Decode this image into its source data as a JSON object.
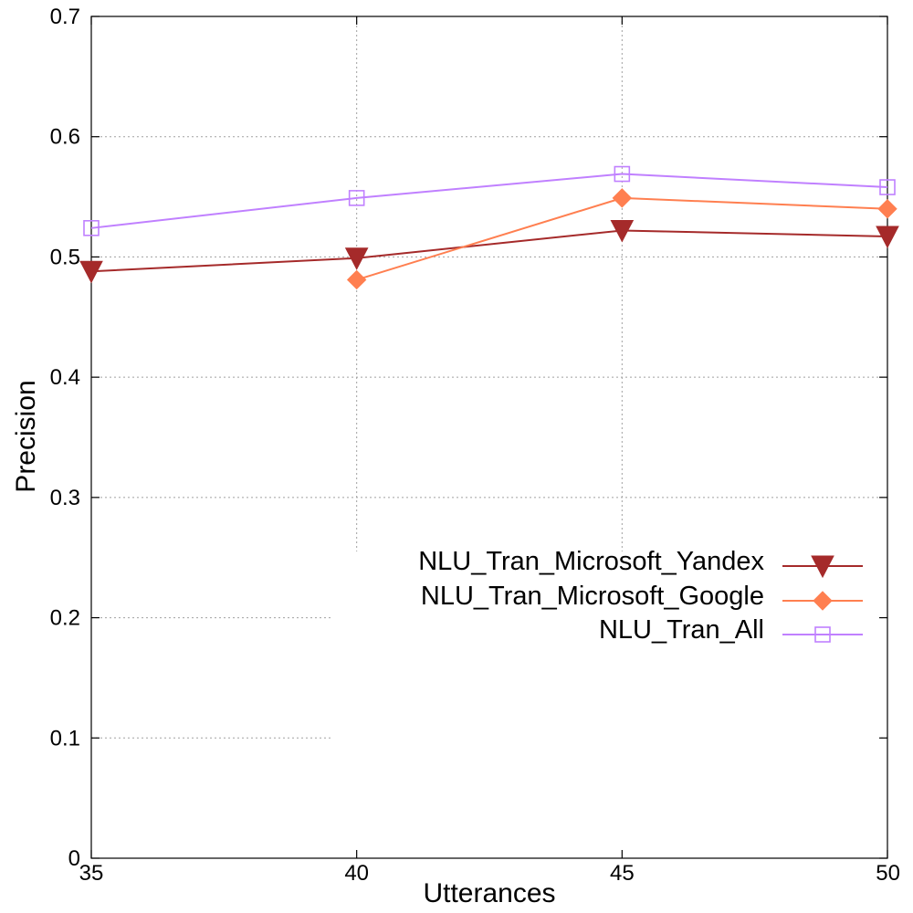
{
  "chart_data": {
    "type": "line",
    "title": "",
    "xlabel": "Utterances",
    "ylabel": "Precision",
    "x": [
      35,
      40,
      45,
      50
    ],
    "xticks": [
      "35",
      "40",
      "45",
      "50"
    ],
    "yticks": [
      "0",
      "0.1",
      "0.2",
      "0.3",
      "0.4",
      "0.5",
      "0.6",
      "0.7"
    ],
    "xlim": [
      35,
      50
    ],
    "ylim": [
      0,
      0.7
    ],
    "grid": true,
    "legend_position": "right",
    "series": [
      {
        "name": "NLU_Tran_Microsoft_Yandex",
        "x": [
          35,
          40,
          45,
          50
        ],
        "values": [
          0.488,
          0.499,
          0.522,
          0.517
        ],
        "color": "#a52a2a",
        "marker": "triangle-down"
      },
      {
        "name": "NLU_Tran_Microsoft_Google",
        "x": [
          40,
          45,
          50
        ],
        "values": [
          0.481,
          0.549,
          0.54
        ],
        "color": "#ff7f50",
        "marker": "diamond"
      },
      {
        "name": "NLU_Tran_All",
        "x": [
          35,
          40,
          45,
          50
        ],
        "values": [
          0.524,
          0.549,
          0.569,
          0.558
        ],
        "color": "#c080ff",
        "marker": "square-open"
      }
    ]
  }
}
